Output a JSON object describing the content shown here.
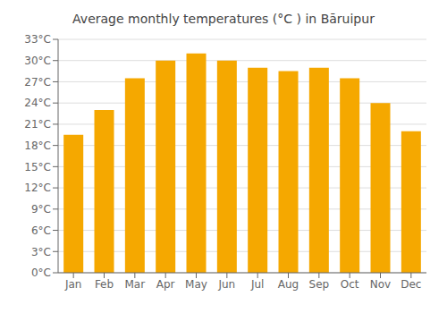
{
  "chart_data": {
    "type": "bar",
    "title": "Average monthly temperatures (°C ) in Bāruipur",
    "categories": [
      "Jan",
      "Feb",
      "Mar",
      "Apr",
      "May",
      "Jun",
      "Jul",
      "Aug",
      "Sep",
      "Oct",
      "Nov",
      "Dec"
    ],
    "values": [
      19.5,
      23.0,
      27.5,
      30.0,
      31.0,
      30.0,
      29.0,
      28.5,
      29.0,
      27.5,
      24.0,
      20.0
    ],
    "color": "#F5A800",
    "ylim": [
      0,
      33
    ],
    "yticks": [
      {
        "value": 0,
        "label": "0°C"
      },
      {
        "value": 3,
        "label": "3°C"
      },
      {
        "value": 6,
        "label": "6°C"
      },
      {
        "value": 9,
        "label": "9°C"
      },
      {
        "value": 12,
        "label": "12°C"
      },
      {
        "value": 15,
        "label": "15°C"
      },
      {
        "value": 18,
        "label": "18°C"
      },
      {
        "value": 21,
        "label": "21°C"
      },
      {
        "value": 24,
        "label": "24°C"
      },
      {
        "value": 27,
        "label": "27°C"
      },
      {
        "value": 30,
        "label": "30°C"
      },
      {
        "value": 33,
        "label": "33°C"
      }
    ],
    "grid": true
  }
}
